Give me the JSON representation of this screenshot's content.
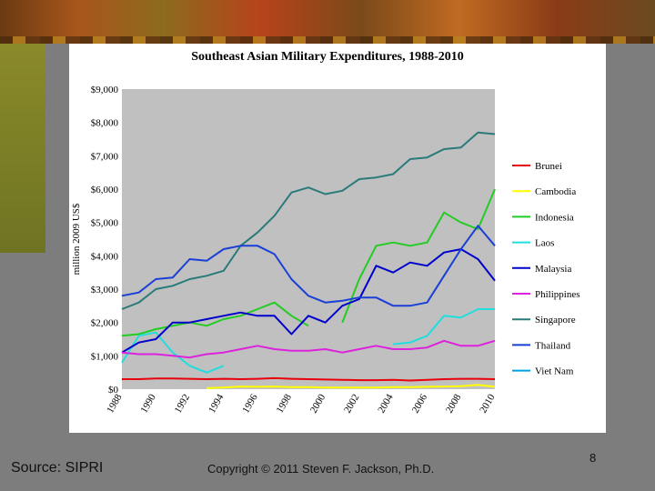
{
  "slide": {
    "source": "Source: SIPRI",
    "copyright": "Copyright © 2011 Steven F. Jackson, Ph.D.",
    "page_number": "8"
  },
  "colors": {
    "plot_bg": "#c0c0c0",
    "legend_bg": "#ffffff",
    "background": "#7d7d7d"
  },
  "chart_data": {
    "type": "line",
    "title": "Southeast Asian Military Expenditures, 1988-2010",
    "xlabel": "",
    "ylabel": "million 2009 US$",
    "x": [
      1988,
      1989,
      1990,
      1991,
      1992,
      1993,
      1994,
      1995,
      1996,
      1997,
      1998,
      1999,
      2000,
      2001,
      2002,
      2003,
      2004,
      2005,
      2006,
      2007,
      2008,
      2009,
      2010
    ],
    "x_ticks": [
      "1988",
      "1990",
      "1992",
      "1994",
      "1996",
      "1998",
      "2000",
      "2002",
      "2004",
      "2006",
      "2008",
      "2010"
    ],
    "ylim": [
      0,
      9000
    ],
    "y_ticks": [
      "$0",
      "$1,000",
      "$2,000",
      "$3,000",
      "$4,000",
      "$5,000",
      "$6,000",
      "$7,000",
      "$8,000",
      "$9,000"
    ],
    "grid": false,
    "legend_position": "right",
    "series": [
      {
        "name": "Brunei",
        "color": "#e8000b",
        "values": [
          300,
          300,
          320,
          320,
          310,
          300,
          310,
          300,
          310,
          330,
          310,
          300,
          290,
          280,
          270,
          270,
          280,
          260,
          280,
          300,
          310,
          310,
          300
        ]
      },
      {
        "name": "Cambodia",
        "color": "#ffff00",
        "values": [
          null,
          null,
          null,
          null,
          null,
          30,
          50,
          80,
          70,
          80,
          60,
          60,
          50,
          50,
          50,
          50,
          60,
          60,
          70,
          80,
          90,
          130,
          70
        ]
      },
      {
        "name": "Indonesia",
        "color": "#22cc22",
        "values": [
          1600,
          1650,
          1800,
          1900,
          2000,
          1900,
          2100,
          2200,
          2400,
          2600,
          2200,
          1900,
          null,
          2000,
          3300,
          4300,
          4400,
          4300,
          4400,
          5300,
          5000,
          4800,
          6000
        ]
      },
      {
        "name": "Laos",
        "color": "#22dddd",
        "values": [
          800,
          1600,
          1700,
          1100,
          700,
          500,
          700,
          null,
          null,
          null,
          null,
          null,
          null,
          null,
          null,
          null,
          1350,
          1400,
          1600,
          2200,
          2150,
          2400,
          2400
        ]
      },
      {
        "name": "Malaysia",
        "color": "#0000cc",
        "values": [
          1100,
          1400,
          1500,
          2000,
          2000,
          2100,
          2200,
          2300,
          2200,
          2200,
          1650,
          2200,
          2000,
          2500,
          2700,
          3700,
          3500,
          3800,
          3700,
          4100,
          4200,
          3900,
          3250
        ]
      },
      {
        "name": "Philippines",
        "color": "#dd22dd",
        "values": [
          1100,
          1050,
          1050,
          1000,
          950,
          1050,
          1100,
          1200,
          1300,
          1200,
          1150,
          1150,
          1200,
          1100,
          1200,
          1300,
          1200,
          1200,
          1250,
          1450,
          1300,
          1300,
          1450
        ]
      },
      {
        "name": "Singapore",
        "color": "#2a7a7a",
        "values": [
          2400,
          2600,
          3000,
          3100,
          3300,
          3400,
          3550,
          4300,
          4700,
          5200,
          5900,
          6050,
          5850,
          5950,
          6300,
          6350,
          6450,
          6900,
          6950,
          7200,
          7250,
          7700,
          7650
        ]
      },
      {
        "name": "Thailand",
        "color": "#1a3fd6",
        "values": [
          2800,
          2900,
          3300,
          3350,
          3900,
          3850,
          4200,
          4300,
          4300,
          4050,
          3300,
          2800,
          2600,
          2650,
          2750,
          2750,
          2500,
          2500,
          2600,
          3400,
          4200,
          4900,
          4300
        ]
      },
      {
        "name": "Viet Nam",
        "color": "#00a0e0",
        "values": [
          null,
          null,
          null,
          null,
          null,
          null,
          null,
          null,
          null,
          null,
          null,
          null,
          null,
          null,
          null,
          null,
          null,
          null,
          null,
          null,
          null,
          null,
          null
        ]
      }
    ]
  }
}
